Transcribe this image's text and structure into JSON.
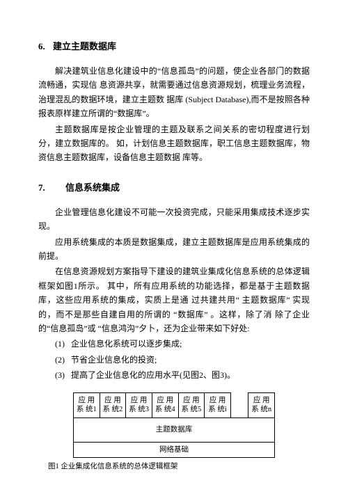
{
  "sec6": {
    "num": "6.",
    "title": "建立主题数据库",
    "p1": "解决建筑业信息化建设中的“信息孤岛”的问题，使企业各部门的数据流畅通，实现信 息资源共享，就需要通过信息资源规划，梳理业务流程，治理混乱的数据环境，建立主题数 据库 (Subject Database),而不是按照各种报表原样建立所谓的“数据库”。",
    "p2": "主题数据库是按企业管理的主题及联系之间关系的密切程度进行划分，建立数据库的。 如，计划信息主题数据库，职工信息主题数据库，物资信息主题数据库，设备信息主题数据 库等。"
  },
  "sec7": {
    "num": "7.",
    "title": "信息系统集成",
    "p1": "企业管理信息化建设不可能一次投资完成，只能采用集成技术逐步实现。",
    "p2": "应用系统集成的本质是数据集成，建立主题数据库是应用系统集成的前提。",
    "p3": "在信息资源规划方案指导下建设的建筑业集成化信息系统的总体逻辑框架如图1所示。 其中，所有应用系统的功能选择，都是基于主题数据库，这些应用系统的集成，实质上是通 过共建共用“ 主题数据库” 实现的，而不是那些自建自用的所谓的 “数据库” 。这样，除了消 除了企业的“信息孤岛”或 “信息鸿沟”夕卜，还为企业带来如下好处:",
    "li1": "企业信息化系统可以逐步集成;",
    "li2": "节省企业信息化的投资;",
    "li3": "提高了企业信息化的应用水平(见图2、图3)。"
  },
  "fig": {
    "row1": {
      "c1a": "应 用",
      "c1b": "系 统1",
      "c2a": "应 用",
      "c2b": "系 统2",
      "c3a": "应 用",
      "c3b": "系 统3",
      "c4a": "应 用",
      "c4b": "系 统4",
      "c5a": "应 用",
      "c5b": "系 统5",
      "c6a": "应 用",
      "c6b": "系 统i",
      "c7a": "应 用",
      "c7b": "系 统n"
    },
    "row2": "主题数据库",
    "row3": "网络基础",
    "caption": "图1  企业集成化信息系统的总体逻辑框架"
  }
}
